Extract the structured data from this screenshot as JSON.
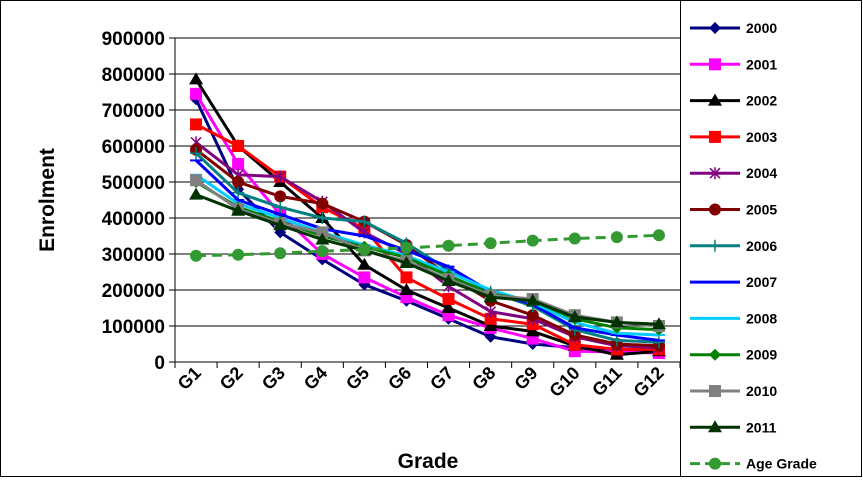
{
  "chart_data": {
    "type": "line",
    "title": "",
    "xlabel": "Grade",
    "ylabel": "Enrolment",
    "ylim": [
      0,
      900000
    ],
    "yticks": [
      0,
      100000,
      200000,
      300000,
      400000,
      500000,
      600000,
      700000,
      800000,
      900000
    ],
    "ytick_labels": [
      "0",
      "100000",
      "200000",
      "300000",
      "400000",
      "500000",
      "600000",
      "700000",
      "800000",
      "900000"
    ],
    "grid": "horizontal",
    "legend": "right",
    "categories": [
      "G1",
      "G2",
      "G3",
      "G4",
      "G5",
      "G6",
      "G7",
      "G8",
      "G9",
      "G10",
      "G11",
      "G12"
    ],
    "series": [
      {
        "name": "2000",
        "color": "#000080",
        "marker": "diamond",
        "dash": "",
        "values": [
          730000,
          480000,
          360000,
          285000,
          215000,
          170000,
          120000,
          70000,
          50000,
          40000,
          30000,
          28000
        ]
      },
      {
        "name": "2001",
        "color": "#FF00FF",
        "marker": "square",
        "dash": "",
        "values": [
          745000,
          550000,
          410000,
          300000,
          235000,
          180000,
          130000,
          95000,
          65000,
          30000,
          28000,
          25000
        ]
      },
      {
        "name": "2002",
        "color": "#000000",
        "marker": "triangle",
        "dash": "",
        "values": [
          785000,
          600000,
          500000,
          400000,
          270000,
          200000,
          150000,
          100000,
          85000,
          45000,
          20000,
          30000
        ]
      },
      {
        "name": "2003",
        "color": "#FF0000",
        "marker": "square",
        "dash": "",
        "values": [
          660000,
          600000,
          515000,
          430000,
          370000,
          235000,
          175000,
          120000,
          105000,
          48000,
          35000,
          35000
        ]
      },
      {
        "name": "2004",
        "color": "#800080",
        "marker": "star",
        "dash": "",
        "values": [
          610000,
          520000,
          515000,
          445000,
          360000,
          300000,
          210000,
          140000,
          120000,
          70000,
          45000,
          40000
        ]
      },
      {
        "name": "2005",
        "color": "#800000",
        "marker": "circle",
        "dash": "",
        "values": [
          590000,
          500000,
          460000,
          440000,
          390000,
          325000,
          240000,
          170000,
          130000,
          75000,
          50000,
          45000
        ]
      },
      {
        "name": "2006",
        "color": "#008080",
        "marker": "plus",
        "dash": "",
        "values": [
          580000,
          470000,
          430000,
          400000,
          390000,
          330000,
          255000,
          195000,
          155000,
          90000,
          60000,
          55000
        ]
      },
      {
        "name": "2007",
        "color": "#0000FF",
        "marker": "dash",
        "dash": "",
        "values": [
          560000,
          450000,
          410000,
          370000,
          350000,
          310000,
          265000,
          195000,
          160000,
          95000,
          75000,
          60000
        ]
      },
      {
        "name": "2008",
        "color": "#00CCFF",
        "marker": "dash",
        "dash": "",
        "values": [
          520000,
          440000,
          400000,
          360000,
          325000,
          295000,
          250000,
          200000,
          165000,
          110000,
          80000,
          75000
        ]
      },
      {
        "name": "2009",
        "color": "#008000",
        "marker": "diamond",
        "dash": "",
        "values": [
          500000,
          430000,
          390000,
          350000,
          320000,
          290000,
          240000,
          190000,
          170000,
          120000,
          95000,
          90000
        ]
      },
      {
        "name": "2010",
        "color": "#808080",
        "marker": "square",
        "dash": "",
        "values": [
          505000,
          425000,
          385000,
          360000,
          310000,
          280000,
          230000,
          185000,
          175000,
          130000,
          110000,
          100000
        ]
      },
      {
        "name": "2011",
        "color": "#003300",
        "marker": "triangle",
        "dash": "",
        "values": [
          465000,
          420000,
          380000,
          340000,
          310000,
          275000,
          225000,
          180000,
          170000,
          125000,
          110000,
          105000
        ]
      },
      {
        "name": "Age Grade",
        "color": "#339933",
        "marker": "circle",
        "dash": "10 6",
        "values": [
          295000,
          298000,
          302000,
          308000,
          312000,
          317000,
          323000,
          330000,
          337000,
          343000,
          347000,
          352000
        ]
      }
    ]
  }
}
